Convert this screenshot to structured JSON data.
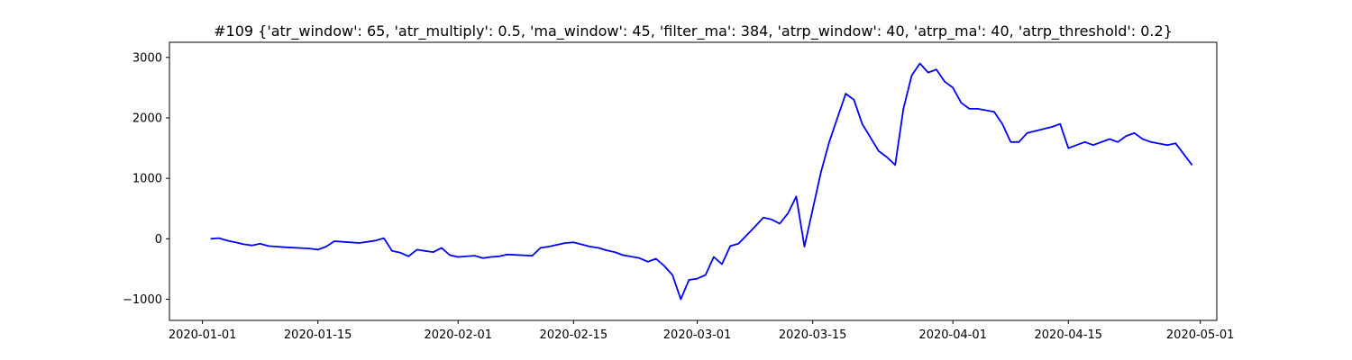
{
  "chart_data": {
    "type": "line",
    "title": "#109 {'atr_window': 65, 'atr_multiply': 0.5, 'ma_window': 45, 'filter_ma': 384, 'atrp_window': 40, 'atrp_ma': 40, 'atrp_threshold': 0.2}",
    "xlabel": "",
    "ylabel": "",
    "grid": false,
    "xlim": [
      "2019-12-28",
      "2020-05-03"
    ],
    "ylim": [
      -1350,
      3250
    ],
    "x_ticks": [
      "2020-01-01",
      "2020-01-15",
      "2020-02-01",
      "2020-02-15",
      "2020-03-01",
      "2020-03-15",
      "2020-04-01",
      "2020-04-15",
      "2020-05-01"
    ],
    "y_ticks": [
      -1000,
      0,
      1000,
      2000,
      3000
    ],
    "y_tick_labels": [
      "−1000",
      "0",
      "1000",
      "2000",
      "3000"
    ],
    "series": [
      {
        "color": "#0000ff",
        "x": [
          "2020-01-02",
          "2020-01-03",
          "2020-01-04",
          "2020-01-05",
          "2020-01-06",
          "2020-01-07",
          "2020-01-08",
          "2020-01-09",
          "2020-01-10",
          "2020-01-11",
          "2020-01-14",
          "2020-01-15",
          "2020-01-16",
          "2020-01-17",
          "2020-01-18",
          "2020-01-19",
          "2020-01-20",
          "2020-01-21",
          "2020-01-22",
          "2020-01-23",
          "2020-01-24",
          "2020-01-25",
          "2020-01-26",
          "2020-01-27",
          "2020-01-28",
          "2020-01-29",
          "2020-01-30",
          "2020-01-31",
          "2020-02-01",
          "2020-02-03",
          "2020-02-04",
          "2020-02-05",
          "2020-02-06",
          "2020-02-07",
          "2020-02-10",
          "2020-02-11",
          "2020-02-12",
          "2020-02-13",
          "2020-02-14",
          "2020-02-15",
          "2020-02-17",
          "2020-02-18",
          "2020-02-19",
          "2020-02-20",
          "2020-02-21",
          "2020-02-23",
          "2020-02-24",
          "2020-02-25",
          "2020-02-26",
          "2020-02-27",
          "2020-02-28",
          "2020-02-29",
          "2020-03-01",
          "2020-03-02",
          "2020-03-03",
          "2020-03-04",
          "2020-03-05",
          "2020-03-06",
          "2020-03-07",
          "2020-03-08",
          "2020-03-09",
          "2020-03-10",
          "2020-03-11",
          "2020-03-12",
          "2020-03-13",
          "2020-03-14",
          "2020-03-16",
          "2020-03-17",
          "2020-03-18",
          "2020-03-19",
          "2020-03-20",
          "2020-03-21",
          "2020-03-23",
          "2020-03-24",
          "2020-03-25",
          "2020-03-26",
          "2020-03-27",
          "2020-03-28",
          "2020-03-29",
          "2020-03-30",
          "2020-03-31",
          "2020-04-01",
          "2020-04-02",
          "2020-04-03",
          "2020-04-04",
          "2020-04-06",
          "2020-04-07",
          "2020-04-08",
          "2020-04-09",
          "2020-04-10",
          "2020-04-13",
          "2020-04-14",
          "2020-04-15",
          "2020-04-16",
          "2020-04-17",
          "2020-04-18",
          "2020-04-20",
          "2020-04-21",
          "2020-04-22",
          "2020-04-23",
          "2020-04-24",
          "2020-04-25",
          "2020-04-27",
          "2020-04-28",
          "2020-04-29",
          "2020-04-30"
        ],
        "y": [
          0,
          10,
          -30,
          -60,
          -90,
          -110,
          -80,
          -120,
          -130,
          -140,
          -160,
          -180,
          -130,
          -40,
          -50,
          -60,
          -70,
          -50,
          -30,
          10,
          -200,
          -230,
          -290,
          -180,
          -200,
          -220,
          -150,
          -270,
          -300,
          -280,
          -320,
          -300,
          -290,
          -260,
          -280,
          -150,
          -130,
          -100,
          -70,
          -60,
          -130,
          -150,
          -190,
          -220,
          -270,
          -320,
          -380,
          -330,
          -450,
          -600,
          -1000,
          -680,
          -660,
          -600,
          -300,
          -420,
          -120,
          -80,
          60,
          200,
          350,
          320,
          250,
          420,
          700,
          -130,
          1100,
          1600,
          2000,
          2400,
          2300,
          1900,
          1450,
          1350,
          1220,
          2150,
          2700,
          2900,
          2750,
          2800,
          2600,
          2500,
          2250,
          2150,
          2150,
          2100,
          1900,
          1600,
          1600,
          1750,
          1850,
          1900,
          1500,
          1550,
          1600,
          1550,
          1650,
          1600,
          1700,
          1750,
          1650,
          1600,
          1550,
          1580,
          1400,
          1220
        ]
      }
    ]
  }
}
